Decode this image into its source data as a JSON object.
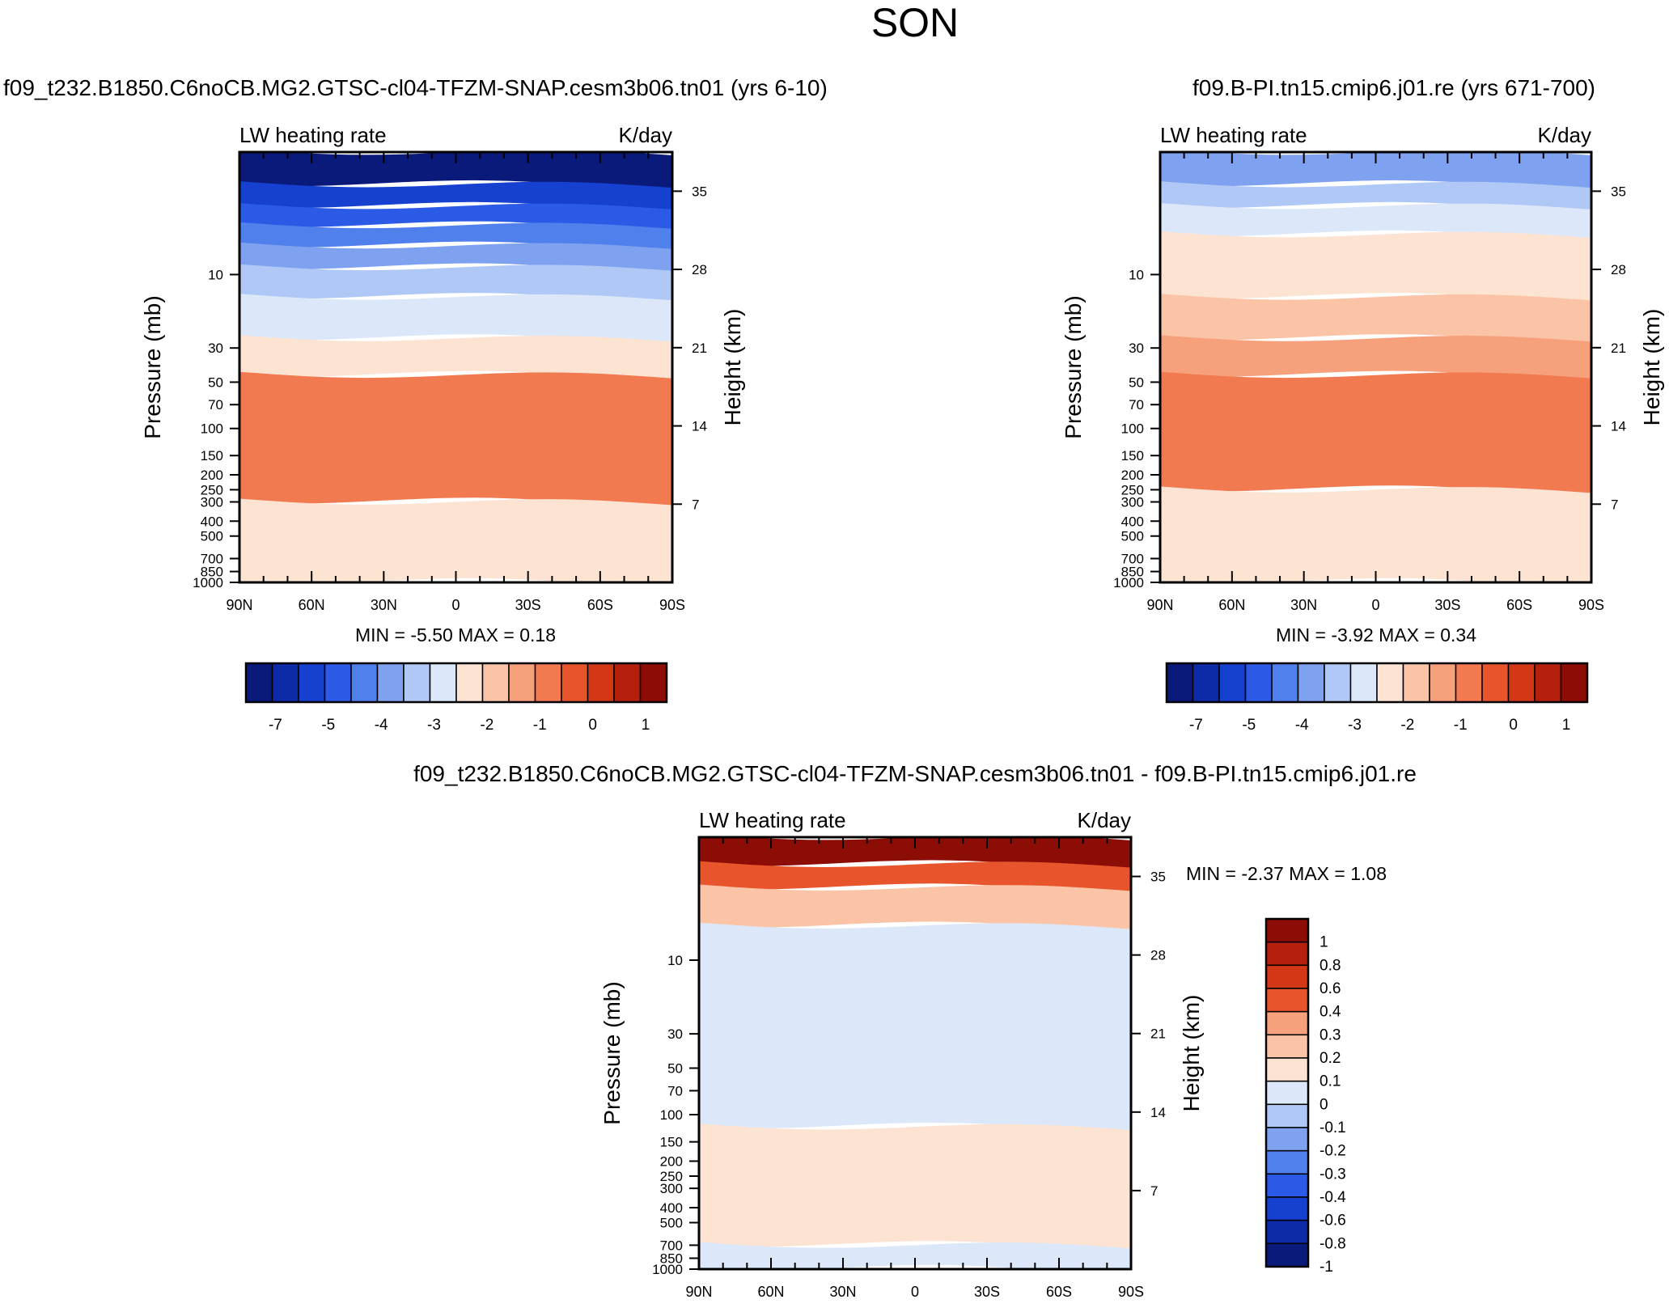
{
  "page": {
    "title": "SON",
    "background": "#ffffff"
  },
  "chart_data": [
    {
      "type": "heatmap",
      "id": "panel-a",
      "title": "f09_t232.B1850.C6noCB.MG2.GTSC-cl04-TFZM-SNAP.cesm3b06.tn01 (yrs 6-10)",
      "left_label": "LW heating rate",
      "right_label": "K/day",
      "xlabel": "",
      "ylabel": "Pressure (mb)",
      "y2label": "Height (km)",
      "x_ticks": [
        "90N",
        "60N",
        "30N",
        "0",
        "30S",
        "60S",
        "90S"
      ],
      "y_ticks": [
        10,
        30,
        50,
        70,
        100,
        150,
        200,
        250,
        300,
        400,
        500,
        700,
        850,
        1000
      ],
      "y2_ticks": [
        35,
        28,
        21,
        14,
        7
      ],
      "stats_text": "MIN =  -5.50  MAX =   0.18",
      "min": -5.5,
      "max": 0.18,
      "colorbar_orientation": "horizontal",
      "colorbar_labels": [
        "-7",
        "-5",
        "-4",
        "-3",
        "-2",
        "-1",
        "0",
        "1"
      ],
      "contour_bands": [
        {
          "p_top": 1.6,
          "p_bottom": 2.6,
          "level": 0
        },
        {
          "p_top": 2.6,
          "p_bottom": 3.6,
          "level": 2
        },
        {
          "p_top": 3.6,
          "p_bottom": 4.8,
          "level": 3
        },
        {
          "p_top": 4.8,
          "p_bottom": 6.5,
          "level": 4
        },
        {
          "p_top": 6.5,
          "p_bottom": 9.0,
          "level": 5
        },
        {
          "p_top": 9.0,
          "p_bottom": 14.0,
          "level": 6
        },
        {
          "p_top": 14.0,
          "p_bottom": 26.0,
          "level": 7
        },
        {
          "p_top": 26.0,
          "p_bottom": 45.0,
          "level": 8
        },
        {
          "p_top": 45.0,
          "p_bottom": 300.0,
          "level": 11
        },
        {
          "p_top": 300.0,
          "p_bottom": 1000.0,
          "level": 8
        }
      ]
    },
    {
      "type": "heatmap",
      "id": "panel-b",
      "title": "f09.B-PI.tn15.cmip6.j01.re (yrs 671-700)",
      "left_label": "LW heating rate",
      "right_label": "K/day",
      "xlabel": "",
      "ylabel": "Pressure (mb)",
      "y2label": "Height (km)",
      "x_ticks": [
        "90N",
        "60N",
        "30N",
        "0",
        "30S",
        "60S",
        "90S"
      ],
      "y_ticks": [
        10,
        30,
        50,
        70,
        100,
        150,
        200,
        250,
        300,
        400,
        500,
        700,
        850,
        1000
      ],
      "y2_ticks": [
        35,
        28,
        21,
        14,
        7
      ],
      "stats_text": "MIN =  -3.92  MAX =   0.34",
      "min": -3.92,
      "max": 0.34,
      "colorbar_orientation": "horizontal",
      "colorbar_labels": [
        "-7",
        "-5",
        "-4",
        "-3",
        "-2",
        "-1",
        "0",
        "1"
      ],
      "contour_bands": [
        {
          "p_top": 1.6,
          "p_bottom": 2.6,
          "level": 5
        },
        {
          "p_top": 2.6,
          "p_bottom": 3.6,
          "level": 6
        },
        {
          "p_top": 3.6,
          "p_bottom": 5.5,
          "level": 7
        },
        {
          "p_top": 5.5,
          "p_bottom": 14.0,
          "level": 8
        },
        {
          "p_top": 14.0,
          "p_bottom": 26.0,
          "level": 9
        },
        {
          "p_top": 26.0,
          "p_bottom": 45.0,
          "level": 10
        },
        {
          "p_top": 45.0,
          "p_bottom": 250.0,
          "level": 11
        },
        {
          "p_top": 250.0,
          "p_bottom": 1000.0,
          "level": 8
        }
      ]
    },
    {
      "type": "heatmap",
      "id": "panel-diff",
      "title": "f09_t232.B1850.C6noCB.MG2.GTSC-cl04-TFZM-SNAP.cesm3b06.tn01 - f09.B-PI.tn15.cmip6.j01.re",
      "left_label": "LW heating rate",
      "right_label": "K/day",
      "xlabel": "",
      "ylabel": "Pressure (mb)",
      "y2label": "Height (km)",
      "x_ticks": [
        "90N",
        "60N",
        "30N",
        "0",
        "30S",
        "60S",
        "90S"
      ],
      "y_ticks": [
        10,
        30,
        50,
        70,
        100,
        150,
        200,
        250,
        300,
        400,
        500,
        700,
        850,
        1000
      ],
      "y2_ticks": [
        35,
        28,
        21,
        14,
        7
      ],
      "stats_text": "MIN =  -2.37  MAX =   1.08",
      "min": -2.37,
      "max": 1.08,
      "colorbar_orientation": "vertical",
      "colorbar_labels": [
        "1",
        "0.8",
        "0.6",
        "0.4",
        "0.3",
        "0.2",
        "0.1",
        "0",
        "-0.1",
        "-0.2",
        "-0.3",
        "-0.4",
        "-0.6",
        "-0.8",
        "-1"
      ],
      "contour_bands": [
        {
          "p_top": 1.6,
          "p_bottom": 2.4,
          "level": 0
        },
        {
          "p_top": 2.4,
          "p_bottom": 3.4,
          "level": 3
        },
        {
          "p_top": 3.4,
          "p_bottom": 6.0,
          "level": 5
        },
        {
          "p_top": 6.0,
          "p_bottom": 120.0,
          "level": 7
        },
        {
          "p_top": 120.0,
          "p_bottom": 700.0,
          "level": 6
        },
        {
          "p_top": 700.0,
          "p_bottom": 1000.0,
          "level": 7
        }
      ]
    }
  ],
  "colormap": {
    "abs_colors": [
      "#0a1a7a",
      "#0d2ba8",
      "#1540d0",
      "#2a5ae6",
      "#5080ec",
      "#7ea2f0",
      "#b0c8f6",
      "#dce8fa",
      "#fde3d2",
      "#fbc4a7",
      "#f7a07c",
      "#f27a50",
      "#e8552c",
      "#d33716",
      "#b5200c",
      "#8c0c06"
    ],
    "diff_colors": [
      "#8c0c06",
      "#b5200c",
      "#d33716",
      "#e8552c",
      "#f7a07c",
      "#fbc4a7",
      "#fde3d2",
      "#dce8fa",
      "#b0c8f6",
      "#7ea2f0",
      "#5080ec",
      "#2a5ae6",
      "#1540d0",
      "#0d2ba8",
      "#0a1a7a"
    ]
  }
}
